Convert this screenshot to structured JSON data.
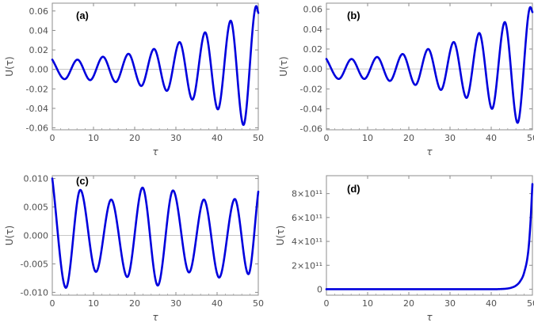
{
  "chart_data": [
    {
      "type": "line",
      "panel_label": "(a)",
      "xlabel": "τ",
      "ylabel": "U(τ)",
      "xlim": [
        0,
        50
      ],
      "ylim": [
        -0.062,
        0.068
      ],
      "xticks": [
        0,
        10,
        20,
        30,
        40,
        50
      ],
      "yticks": [
        -0.06,
        -0.04,
        -0.02,
        0.0,
        0.02,
        0.04,
        0.06
      ],
      "ytick_labels": [
        "-0.06",
        "-0.04",
        "-0.02",
        "0.00",
        "0.02",
        "0.04",
        "0.06"
      ],
      "zero_line": true,
      "series": [
        {
          "color": "#0000dd",
          "x": [
            0,
            3.0,
            6.1,
            9.2,
            12.3,
            15.4,
            18.5,
            21.6,
            24.7,
            27.8,
            30.9,
            34.0,
            37.1,
            40.2,
            43.3,
            46.4,
            49.5,
            50
          ],
          "y": [
            0.01,
            -0.01,
            0.01,
            -0.011,
            0.013,
            -0.013,
            0.016,
            -0.017,
            0.021,
            -0.022,
            0.028,
            -0.031,
            0.038,
            -0.041,
            0.05,
            -0.057,
            0.065,
            0.058
          ]
        }
      ]
    },
    {
      "type": "line",
      "panel_label": "(b)",
      "xlabel": "τ",
      "ylabel": "U(τ)",
      "xlim": [
        0,
        50
      ],
      "ylim": [
        -0.061,
        0.066
      ],
      "xticks": [
        0,
        10,
        20,
        30,
        40,
        50
      ],
      "yticks": [
        -0.06,
        -0.04,
        -0.02,
        0.0,
        0.02,
        0.04,
        0.06
      ],
      "ytick_labels": [
        "-0.06",
        "-0.04",
        "-0.02",
        "0.00",
        "0.02",
        "0.04",
        "0.06"
      ],
      "zero_line": true,
      "series": [
        {
          "color": "#0000dd",
          "x": [
            0,
            3.0,
            6.1,
            9.2,
            12.3,
            15.4,
            18.5,
            21.6,
            24.7,
            27.8,
            30.9,
            34.0,
            37.1,
            40.2,
            43.3,
            46.4,
            49.5,
            50
          ],
          "y": [
            0.01,
            -0.01,
            0.01,
            -0.01,
            0.012,
            -0.012,
            0.015,
            -0.016,
            0.02,
            -0.021,
            0.027,
            -0.029,
            0.036,
            -0.04,
            0.047,
            -0.054,
            0.062,
            0.057
          ]
        }
      ]
    },
    {
      "type": "line",
      "panel_label": "(c)",
      "xlabel": "τ",
      "ylabel": "U(τ)",
      "xlim": [
        0,
        50
      ],
      "ylim": [
        -0.0105,
        0.0105
      ],
      "xticks": [
        0,
        10,
        20,
        30,
        40,
        50
      ],
      "yticks": [
        -0.01,
        -0.005,
        0.0,
        0.005,
        0.01
      ],
      "ytick_labels": [
        "-0.010",
        "-0.005",
        "0.000",
        "0.005",
        "0.010"
      ],
      "zero_line": true,
      "series": [
        {
          "color": "#0000dd",
          "x": [
            0,
            3.3,
            6.8,
            10.6,
            14.3,
            18.2,
            21.9,
            25.6,
            29.3,
            33.2,
            36.8,
            40.5,
            44.3,
            47.6,
            50
          ],
          "y": [
            0.01,
            -0.0092,
            0.008,
            -0.0064,
            0.0063,
            -0.0073,
            0.0084,
            -0.0088,
            0.0079,
            -0.0065,
            0.0063,
            -0.0074,
            0.0064,
            -0.0068,
            0.0077
          ]
        }
      ]
    },
    {
      "type": "line",
      "panel_label": "(d)",
      "xlabel": "τ",
      "ylabel": "U(τ)",
      "xlim": [
        0,
        50
      ],
      "ylim": [
        -50000000000.0,
        950000000000.0
      ],
      "xticks": [
        0,
        10,
        20,
        30,
        40,
        50
      ],
      "yticks": [
        0,
        200000000000.0,
        400000000000.0,
        600000000000.0,
        800000000000.0
      ],
      "ytick_labels": [
        "0",
        "2×10¹¹",
        "4×10¹¹",
        "6×10¹¹",
        "8×10¹¹"
      ],
      "zero_line": false,
      "series": [
        {
          "color": "#0000dd",
          "x": [
            0,
            10,
            20,
            30,
            40,
            42,
            44,
            45,
            46,
            47,
            48,
            49,
            49.5,
            50
          ],
          "y": [
            0,
            0,
            0,
            0,
            0,
            1000000000.0,
            6000000000.0,
            14000000000.0,
            30000000000.0,
            65000000000.0,
            140000000000.0,
            320000000000.0,
            540000000000.0,
            880000000000.0
          ]
        }
      ]
    }
  ]
}
